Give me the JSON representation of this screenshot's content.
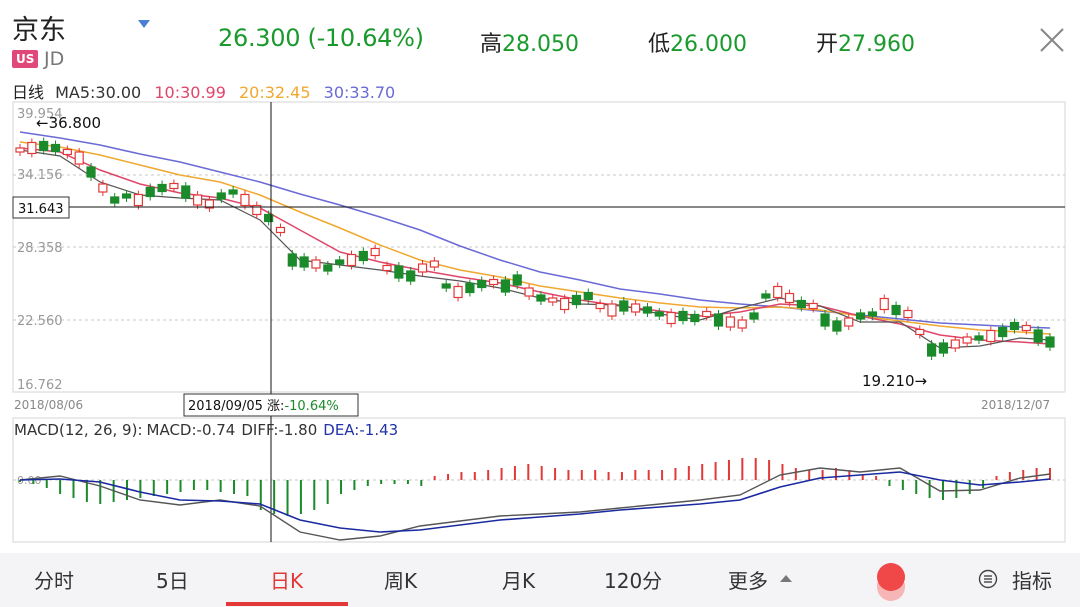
{
  "header": {
    "stock_name": "京东",
    "market_badge": "US",
    "ticker": "JD",
    "price_change": "26.300 (-10.64%)",
    "high_label": "高",
    "high_value": "28.050",
    "low_label": "低",
    "low_value": "26.000",
    "open_label": "开",
    "open_value": "27.960",
    "price_color": "#1a9a2c"
  },
  "ma_legend": {
    "period": "日线",
    "ma5": "MA5:30.00",
    "ma10": "10:30.99",
    "ma20": "20:32.45",
    "ma30": "30:33.70",
    "colors": {
      "ma5": "#333333",
      "ma10": "#e0456a",
      "ma20": "#f0a830",
      "ma30": "#6a6ad6"
    }
  },
  "price_axis": {
    "ticks": [
      "39.954",
      "34.156",
      "28.358",
      "22.560",
      "16.762"
    ],
    "range": [
      16.762,
      39.954
    ],
    "high_marker": "←36.800",
    "low_marker": "19.210→",
    "crosshair_price": "31.643",
    "start_date": "2018/08/06",
    "end_date": "2018/12/07",
    "crosshair_tooltip": "2018/09/05 涨:",
    "crosshair_change": "-10.64%"
  },
  "macd": {
    "label": "MACD(12, 26, 9):",
    "macd": "MACD:-0.74",
    "diff": "DIFF:-1.80",
    "dea": "DEA:-1.43",
    "zero_label": "0.00"
  },
  "tabs": [
    {
      "label": "分时"
    },
    {
      "label": "5日"
    },
    {
      "label": "日K"
    },
    {
      "label": "周K"
    },
    {
      "label": "月K"
    },
    {
      "label": "120分"
    },
    {
      "label": "更多"
    },
    {
      "label": "指标"
    }
  ],
  "active_tab": "日K",
  "up_color": "#e33838",
  "down_color": "#1a8a2a"
}
